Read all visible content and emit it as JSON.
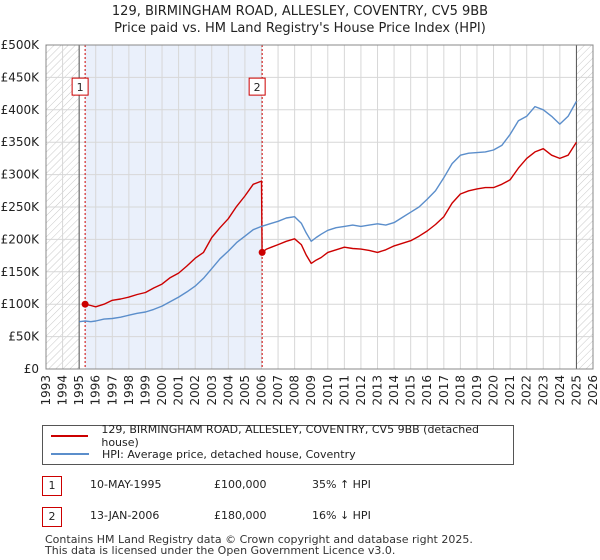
{
  "colors": {
    "property": "#cc0000",
    "hpi": "#5b8ecb",
    "shade": "#eaf0fb",
    "grid": "#d7d7d7",
    "marker_line": "#cc0000"
  },
  "chart_data": {
    "type": "line",
    "title": "129, BIRMINGHAM ROAD, ALLESLEY, COVENTRY, CV5 9BB",
    "subtitle": "Price paid vs. HM Land Registry's House Price Index (HPI)",
    "xlim": [
      1993,
      2026
    ],
    "ylim": [
      0,
      500000
    ],
    "x_ticks": [
      1993,
      1994,
      1995,
      1996,
      1997,
      1998,
      1999,
      2000,
      2001,
      2002,
      2003,
      2004,
      2005,
      2006,
      2007,
      2008,
      2009,
      2010,
      2011,
      2012,
      2013,
      2014,
      2015,
      2016,
      2017,
      2018,
      2019,
      2020,
      2021,
      2022,
      2023,
      2024,
      2025,
      2026
    ],
    "x_tick_labels": [
      "1993",
      "1994",
      "1995",
      "1996",
      "1997",
      "1998",
      "1999",
      "2000",
      "2001",
      "2002",
      "2003",
      "2004",
      "2005",
      "2006",
      "2007",
      "2008",
      "2009",
      "2010",
      "2011",
      "2012",
      "2013",
      "2014",
      "2015",
      "2016",
      "2017",
      "2018",
      "2019",
      "2020",
      "2021",
      "2022",
      "2023",
      "2024",
      "2025",
      "2026"
    ],
    "y_ticks": [
      0,
      50000,
      100000,
      150000,
      200000,
      250000,
      300000,
      350000,
      400000,
      450000,
      500000
    ],
    "y_tick_labels": [
      "£0",
      "£50K",
      "£100K",
      "£150K",
      "£200K",
      "£250K",
      "£300K",
      "£350K",
      "£400K",
      "£450K",
      "£500K"
    ],
    "hatch_before": 1995.0,
    "hatch_after": 2025.0,
    "shaded_region": [
      1995.36,
      2006.04
    ],
    "series": [
      {
        "name": "129, BIRMINGHAM ROAD, ALLESLEY, COVENTRY, CV5 9BB (detached house)",
        "color": "#cc0000",
        "x": [
          1995.36,
          1995.7,
          1996.0,
          1996.5,
          1997.0,
          1997.5,
          1998.0,
          1998.5,
          1999.0,
          1999.5,
          2000.0,
          2000.5,
          2001.0,
          2001.5,
          2002.0,
          2002.5,
          2003.0,
          2003.5,
          2004.0,
          2004.5,
          2005.0,
          2005.5,
          2006.0,
          2006.04,
          2006.3,
          2006.6,
          2007.0,
          2007.5,
          2008.0,
          2008.4,
          2008.7,
          2009.0,
          2009.3,
          2009.6,
          2010.0,
          2010.5,
          2011.0,
          2011.5,
          2012.0,
          2012.5,
          2013.0,
          2013.5,
          2014.0,
          2014.5,
          2015.0,
          2015.5,
          2016.0,
          2016.5,
          2017.0,
          2017.5,
          2018.0,
          2018.5,
          2019.0,
          2019.5,
          2020.0,
          2020.5,
          2021.0,
          2021.5,
          2022.0,
          2022.5,
          2023.0,
          2023.5,
          2024.0,
          2024.5,
          2025.0
        ],
        "y": [
          100000,
          98000,
          96000,
          100000,
          106000,
          108000,
          111000,
          115000,
          118000,
          125000,
          131000,
          141000,
          148000,
          159000,
          171000,
          180000,
          203000,
          218000,
          232000,
          251000,
          267000,
          285000,
          290000,
          180000,
          185000,
          188000,
          192000,
          197000,
          201000,
          192000,
          176000,
          163000,
          168000,
          172000,
          180000,
          184000,
          188000,
          186000,
          185000,
          183000,
          180000,
          184000,
          190000,
          194000,
          198000,
          205000,
          213000,
          223000,
          235000,
          256000,
          270000,
          275000,
          278000,
          280000,
          280000,
          285000,
          292000,
          310000,
          325000,
          335000,
          340000,
          330000,
          325000,
          330000,
          350000
        ]
      },
      {
        "name": "HPI: Average price, detached house, Coventry",
        "color": "#5b8ecb",
        "x": [
          1995.0,
          1995.36,
          1995.7,
          1996.0,
          1996.5,
          1997.0,
          1997.5,
          1998.0,
          1998.5,
          1999.0,
          1999.5,
          2000.0,
          2000.5,
          2001.0,
          2001.5,
          2002.0,
          2002.5,
          2003.0,
          2003.5,
          2004.0,
          2004.5,
          2005.0,
          2005.5,
          2006.0,
          2006.5,
          2007.0,
          2007.5,
          2008.0,
          2008.4,
          2008.7,
          2009.0,
          2009.3,
          2009.6,
          2010.0,
          2010.5,
          2011.0,
          2011.5,
          2012.0,
          2012.5,
          2013.0,
          2013.5,
          2014.0,
          2014.5,
          2015.0,
          2015.5,
          2016.0,
          2016.5,
          2017.0,
          2017.5,
          2018.0,
          2018.5,
          2019.0,
          2019.5,
          2020.0,
          2020.5,
          2021.0,
          2021.5,
          2022.0,
          2022.5,
          2023.0,
          2023.5,
          2024.0,
          2024.5,
          2025.0
        ],
        "y": [
          73000,
          74000,
          73000,
          74000,
          77000,
          78000,
          80000,
          83000,
          86000,
          88000,
          92000,
          97000,
          104000,
          111000,
          119000,
          128000,
          140000,
          155000,
          170000,
          182000,
          195000,
          205000,
          215000,
          220000,
          224000,
          228000,
          233000,
          235000,
          225000,
          210000,
          197000,
          203000,
          208000,
          214000,
          218000,
          220000,
          222000,
          220000,
          222000,
          224000,
          222000,
          226000,
          234000,
          242000,
          250000,
          262000,
          275000,
          295000,
          317000,
          330000,
          333000,
          334000,
          335000,
          338000,
          345000,
          362000,
          383000,
          390000,
          405000,
          400000,
          390000,
          378000,
          390000,
          413000
        ]
      }
    ],
    "sale_points": [
      {
        "x": 1995.36,
        "y": 100000,
        "label": "1"
      },
      {
        "x": 2006.04,
        "y": 180000,
        "label": "2"
      }
    ],
    "annotation_boxes": [
      {
        "x": 1995.36,
        "y": 435000,
        "label": "1"
      },
      {
        "x": 2006.04,
        "y": 435000,
        "label": "2"
      }
    ]
  },
  "legend": {
    "property_label": "129, BIRMINGHAM ROAD, ALLESLEY, COVENTRY, CV5 9BB (detached house)",
    "hpi_label": "HPI: Average price, detached house, Coventry"
  },
  "sales": [
    {
      "num": "1",
      "date": "10-MAY-1995",
      "price": "£100,000",
      "hpi": "35% ↑ HPI"
    },
    {
      "num": "2",
      "date": "13-JAN-2006",
      "price": "£180,000",
      "hpi": "16% ↓ HPI"
    }
  ],
  "footer": {
    "line1": "Contains HM Land Registry data © Crown copyright and database right 2025.",
    "line2": "This data is licensed under the Open Government Licence v3.0."
  }
}
